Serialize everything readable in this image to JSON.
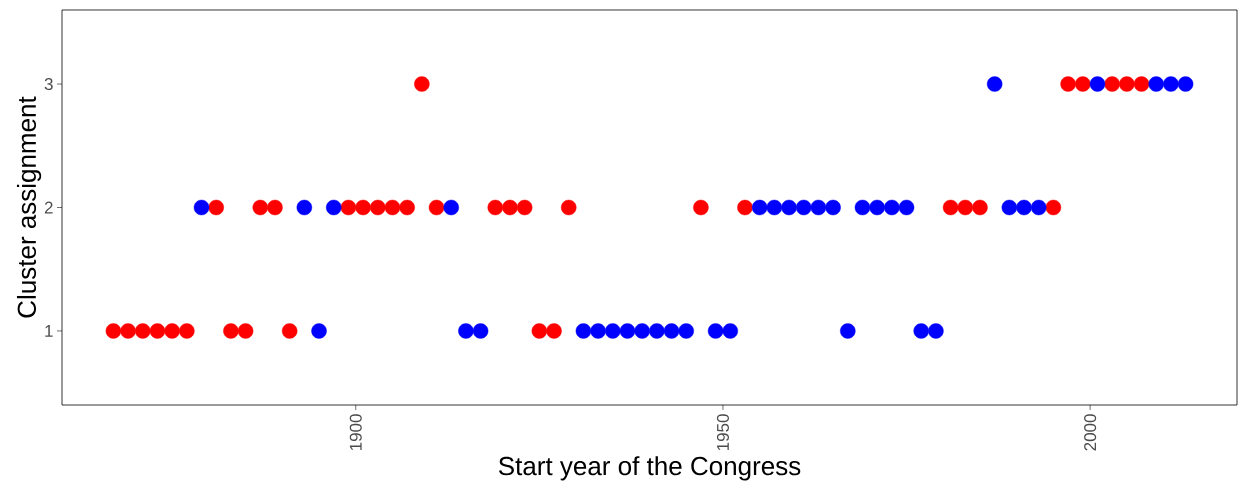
{
  "chart_data": {
    "type": "scatter",
    "xlabel": "Start year of the Congress",
    "ylabel": "Cluster assignment",
    "xlim": [
      1860,
      2020
    ],
    "ylim": [
      0.4,
      3.6
    ],
    "xticks": [
      1900,
      1950,
      2000
    ],
    "yticks": [
      1,
      2,
      3
    ],
    "marker": "circle",
    "series": [
      {
        "color": "#ff0000",
        "x": [
          1867,
          1869,
          1871,
          1873,
          1875,
          1877,
          1881,
          1883,
          1885,
          1887,
          1889,
          1891,
          1899,
          1901,
          1903,
          1905,
          1907,
          1909,
          1911,
          1919,
          1921,
          1923,
          1925,
          1927,
          1929,
          1947,
          1953,
          1981,
          1983,
          1985,
          1995,
          1997,
          1999,
          2003,
          2005,
          2007
        ],
        "values": [
          1,
          1,
          1,
          1,
          1,
          1,
          2,
          1,
          1,
          2,
          2,
          1,
          2,
          2,
          2,
          2,
          2,
          3,
          2,
          2,
          2,
          2,
          1,
          1,
          2,
          2,
          2,
          2,
          2,
          2,
          2,
          3,
          3,
          3,
          3,
          3
        ]
      },
      {
        "color": "#0000ff",
        "x": [
          1879,
          1893,
          1895,
          1897,
          1913,
          1915,
          1917,
          1931,
          1933,
          1935,
          1937,
          1939,
          1941,
          1943,
          1945,
          1949,
          1951,
          1955,
          1957,
          1959,
          1961,
          1963,
          1965,
          1967,
          1969,
          1971,
          1973,
          1975,
          1977,
          1979,
          1987,
          1989,
          1991,
          1993,
          2001,
          2009,
          2011,
          2013
        ],
        "values": [
          2,
          2,
          1,
          2,
          2,
          1,
          1,
          1,
          1,
          1,
          1,
          1,
          1,
          1,
          1,
          1,
          1,
          2,
          2,
          2,
          2,
          2,
          2,
          1,
          2,
          2,
          2,
          2,
          1,
          1,
          3,
          2,
          2,
          2,
          3,
          3,
          3,
          3
        ]
      }
    ]
  }
}
